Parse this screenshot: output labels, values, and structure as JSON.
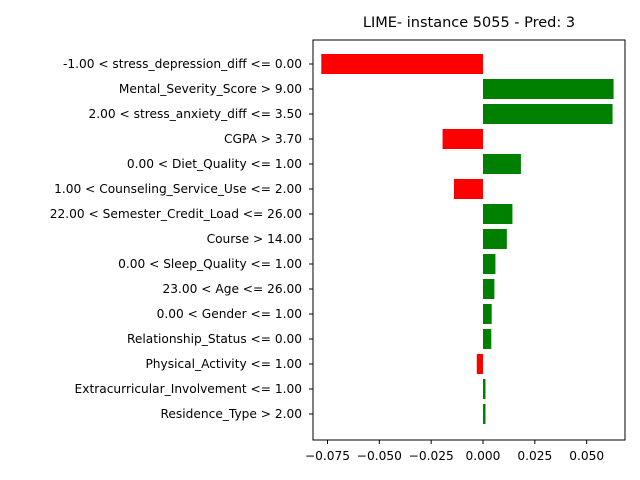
{
  "chart_data": {
    "type": "bar",
    "orientation": "horizontal",
    "title": "LIME- instance 5055 - Pred: 3",
    "xlabel": "",
    "ylabel": "",
    "xlim": [
      -0.082,
      0.0685
    ],
    "grid": false,
    "colors": {
      "positive": "#008000",
      "negative": "#ff0000"
    },
    "categories": [
      "-1.00 < stress_depression_diff <= 0.00",
      "Mental_Severity_Score > 9.00",
      "2.00 < stress_anxiety_diff <= 3.50",
      "CGPA > 3.70",
      "0.00 < Diet_Quality <= 1.00",
      "1.00 < Counseling_Service_Use <= 2.00",
      "22.00 < Semester_Credit_Load <= 26.00",
      "Course > 14.00",
      "0.00 < Sleep_Quality <= 1.00",
      "23.00 < Age <= 26.00",
      "0.00 < Gender <= 1.00",
      "Relationship_Status <= 0.00",
      "Physical_Activity <= 1.00",
      "Extracurricular_Involvement <= 1.00",
      "Residence_Type > 2.00"
    ],
    "values": [
      -0.078,
      0.063,
      0.0625,
      -0.0195,
      0.0183,
      -0.014,
      0.0142,
      0.0115,
      0.006,
      0.0055,
      0.0042,
      0.004,
      -0.003,
      0.0012,
      0.0012
    ],
    "xticks": [
      -0.075,
      -0.05,
      -0.025,
      0.0,
      0.025,
      0.05
    ],
    "xtick_labels": [
      "−0.075",
      "−0.050",
      "−0.025",
      "0.000",
      "0.025",
      "0.050"
    ]
  }
}
